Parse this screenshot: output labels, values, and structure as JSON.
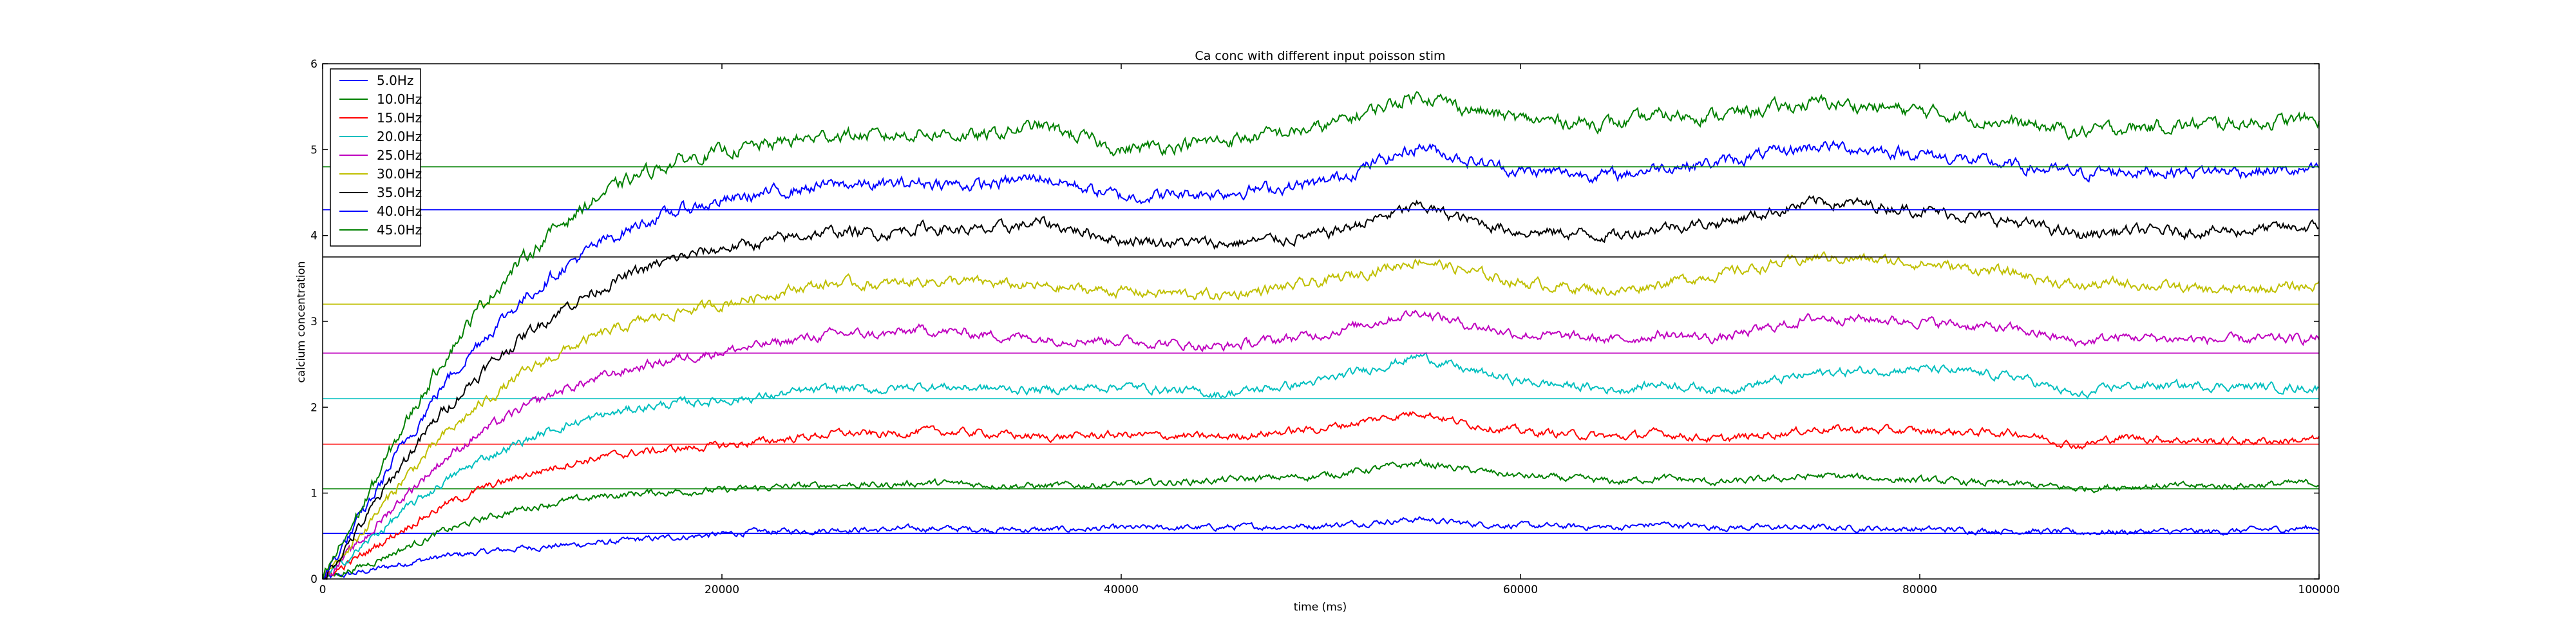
{
  "chart_data": {
    "type": "line",
    "title": "Ca conc with different input poisson stim",
    "xlabel": "time (ms)",
    "ylabel": "calcium concentration",
    "xlim": [
      0,
      100000
    ],
    "ylim": [
      0,
      6
    ],
    "xticks": [
      0,
      20000,
      40000,
      60000,
      80000,
      100000
    ],
    "yticks": [
      0,
      1,
      2,
      3,
      4,
      5,
      6
    ],
    "grid": false,
    "legend_position": "top-left",
    "series": [
      {
        "name": "5.0Hz",
        "color": "#0000ff",
        "baseline": 0.53,
        "x": [
          0,
          2000,
          4000,
          6000,
          8000,
          10000,
          12000,
          14000,
          16000,
          18000,
          20000,
          22000,
          24000,
          26000,
          28000,
          30000,
          33000,
          36000,
          40000,
          45000,
          50000,
          55000,
          57000,
          60000,
          65000,
          67000,
          70000,
          75000,
          80000,
          85000,
          88000,
          90000,
          95000,
          100000
        ],
        "y": [
          0,
          0.08,
          0.18,
          0.26,
          0.31,
          0.36,
          0.39,
          0.42,
          0.46,
          0.49,
          0.52,
          0.55,
          0.56,
          0.58,
          0.57,
          0.59,
          0.58,
          0.57,
          0.59,
          0.6,
          0.62,
          0.7,
          0.65,
          0.62,
          0.6,
          0.64,
          0.6,
          0.6,
          0.58,
          0.56,
          0.54,
          0.55,
          0.55,
          0.6
        ]
      },
      {
        "name": "10.0Hz",
        "color": "#008000",
        "baseline": 1.05,
        "x": [
          0,
          2000,
          4000,
          6000,
          8000,
          10000,
          12000,
          14000,
          16000,
          18000,
          20000,
          22000,
          24000,
          26000,
          28000,
          30000,
          33000,
          36000,
          40000,
          45000,
          50000,
          55000,
          57000,
          60000,
          65000,
          67000,
          70000,
          75000,
          80000,
          85000,
          88000,
          90000,
          95000,
          100000
        ],
        "y": [
          0,
          0.15,
          0.35,
          0.55,
          0.7,
          0.82,
          0.9,
          0.96,
          1.0,
          1.02,
          1.03,
          1.06,
          1.08,
          1.1,
          1.09,
          1.12,
          1.1,
          1.08,
          1.1,
          1.15,
          1.2,
          1.35,
          1.28,
          1.2,
          1.13,
          1.18,
          1.12,
          1.2,
          1.15,
          1.1,
          1.05,
          1.08,
          1.08,
          1.12
        ]
      },
      {
        "name": "15.0Hz",
        "color": "#ff0000",
        "baseline": 1.57,
        "x": [
          0,
          2000,
          4000,
          6000,
          8000,
          10000,
          12000,
          14000,
          16000,
          18000,
          20000,
          22000,
          24000,
          26000,
          28000,
          30000,
          33000,
          36000,
          40000,
          45000,
          50000,
          55000,
          57000,
          60000,
          65000,
          67000,
          70000,
          75000,
          80000,
          85000,
          88000,
          90000,
          95000,
          100000
        ],
        "y": [
          0,
          0.28,
          0.58,
          0.85,
          1.05,
          1.2,
          1.33,
          1.42,
          1.48,
          1.52,
          1.55,
          1.6,
          1.65,
          1.7,
          1.68,
          1.72,
          1.7,
          1.65,
          1.68,
          1.65,
          1.75,
          1.95,
          1.82,
          1.72,
          1.65,
          1.7,
          1.62,
          1.75,
          1.72,
          1.7,
          1.55,
          1.65,
          1.6,
          1.62
        ]
      },
      {
        "name": "20.0Hz",
        "color": "#00bfbf",
        "baseline": 2.1,
        "x": [
          0,
          2000,
          4000,
          6000,
          8000,
          10000,
          12000,
          14000,
          16000,
          18000,
          20000,
          22000,
          24000,
          26000,
          28000,
          30000,
          33000,
          36000,
          40000,
          45000,
          50000,
          55000,
          57000,
          60000,
          65000,
          67000,
          70000,
          75000,
          80000,
          85000,
          88000,
          90000,
          95000,
          100000
        ],
        "y": [
          0,
          0.38,
          0.78,
          1.12,
          1.4,
          1.6,
          1.78,
          1.9,
          2.0,
          2.05,
          2.08,
          2.12,
          2.18,
          2.22,
          2.2,
          2.25,
          2.22,
          2.2,
          2.25,
          2.15,
          2.3,
          2.6,
          2.45,
          2.3,
          2.2,
          2.28,
          2.2,
          2.4,
          2.45,
          2.35,
          2.12,
          2.25,
          2.25,
          2.22
        ]
      },
      {
        "name": "25.0Hz",
        "color": "#bf00bf",
        "baseline": 2.63,
        "x": [
          0,
          2000,
          4000,
          6000,
          8000,
          10000,
          12000,
          14000,
          16000,
          18000,
          20000,
          22000,
          24000,
          26000,
          28000,
          30000,
          33000,
          36000,
          40000,
          45000,
          50000,
          55000,
          57000,
          60000,
          65000,
          67000,
          70000,
          75000,
          80000,
          85000,
          88000,
          90000,
          95000,
          100000
        ],
        "y": [
          0,
          0.45,
          0.95,
          1.38,
          1.72,
          1.98,
          2.2,
          2.35,
          2.48,
          2.58,
          2.65,
          2.72,
          2.8,
          2.86,
          2.84,
          2.9,
          2.85,
          2.8,
          2.78,
          2.7,
          2.85,
          3.12,
          2.98,
          2.85,
          2.78,
          2.85,
          2.8,
          3.05,
          3.0,
          2.9,
          2.75,
          2.82,
          2.78,
          2.8
        ]
      },
      {
        "name": "30.0Hz",
        "color": "#bfbf00",
        "baseline": 3.2,
        "x": [
          0,
          2000,
          4000,
          6000,
          8000,
          10000,
          12000,
          14000,
          16000,
          18000,
          20000,
          22000,
          24000,
          26000,
          28000,
          30000,
          33000,
          36000,
          40000,
          45000,
          50000,
          55000,
          57000,
          60000,
          65000,
          67000,
          70000,
          75000,
          80000,
          85000,
          88000,
          90000,
          95000,
          100000
        ],
        "y": [
          0,
          0.55,
          1.15,
          1.65,
          2.05,
          2.38,
          2.65,
          2.85,
          3.0,
          3.12,
          3.2,
          3.3,
          3.4,
          3.45,
          3.42,
          3.48,
          3.45,
          3.4,
          3.35,
          3.3,
          3.45,
          3.72,
          3.6,
          3.45,
          3.35,
          3.45,
          3.55,
          3.75,
          3.68,
          3.55,
          3.4,
          3.45,
          3.35,
          3.42
        ]
      },
      {
        "name": "35.0Hz",
        "color": "#000000",
        "baseline": 3.75,
        "x": [
          0,
          2000,
          4000,
          6000,
          8000,
          10000,
          12000,
          14000,
          16000,
          18000,
          20000,
          22000,
          24000,
          26000,
          28000,
          30000,
          33000,
          36000,
          40000,
          45000,
          50000,
          55000,
          57000,
          60000,
          65000,
          67000,
          70000,
          75000,
          80000,
          85000,
          88000,
          90000,
          95000,
          100000
        ],
        "y": [
          0,
          0.65,
          1.35,
          1.95,
          2.42,
          2.82,
          3.15,
          3.4,
          3.6,
          3.75,
          3.85,
          3.92,
          4.0,
          4.05,
          4.02,
          4.1,
          4.05,
          4.15,
          3.95,
          3.9,
          4.0,
          4.35,
          4.2,
          4.05,
          4.0,
          4.1,
          4.15,
          4.4,
          4.3,
          4.15,
          4.0,
          4.05,
          4.05,
          4.1
        ]
      },
      {
        "name": "40.0Hz",
        "color": "#0000ff",
        "baseline": 4.3,
        "x": [
          0,
          2000,
          4000,
          6000,
          8000,
          10000,
          12000,
          14000,
          16000,
          18000,
          20000,
          22000,
          24000,
          26000,
          28000,
          30000,
          33000,
          36000,
          40000,
          45000,
          50000,
          55000,
          57000,
          60000,
          65000,
          67000,
          70000,
          75000,
          80000,
          85000,
          88000,
          90000,
          95000,
          100000
        ],
        "y": [
          0,
          0.75,
          1.55,
          2.25,
          2.8,
          3.25,
          3.62,
          3.92,
          4.15,
          4.3,
          4.4,
          4.48,
          4.55,
          4.6,
          4.58,
          4.62,
          4.58,
          4.68,
          4.45,
          4.5,
          4.6,
          5.05,
          4.9,
          4.75,
          4.7,
          4.8,
          4.85,
          5.05,
          4.95,
          4.8,
          4.72,
          4.75,
          4.75,
          4.75
        ]
      },
      {
        "name": "45.0Hz",
        "color": "#008000",
        "baseline": 4.8,
        "x": [
          0,
          2000,
          4000,
          6000,
          8000,
          10000,
          12000,
          14000,
          16000,
          18000,
          20000,
          22000,
          24000,
          26000,
          28000,
          30000,
          33000,
          36000,
          40000,
          45000,
          50000,
          55000,
          57000,
          60000,
          65000,
          67000,
          70000,
          75000,
          80000,
          85000,
          88000,
          90000,
          95000,
          100000
        ],
        "y": [
          0,
          0.85,
          1.75,
          2.55,
          3.2,
          3.72,
          4.15,
          4.48,
          4.72,
          4.88,
          4.98,
          5.05,
          5.12,
          5.18,
          5.15,
          5.2,
          5.15,
          5.28,
          5.0,
          5.1,
          5.25,
          5.65,
          5.5,
          5.35,
          5.3,
          5.4,
          5.4,
          5.55,
          5.45,
          5.3,
          5.2,
          5.25,
          5.3,
          5.35
        ]
      }
    ]
  }
}
